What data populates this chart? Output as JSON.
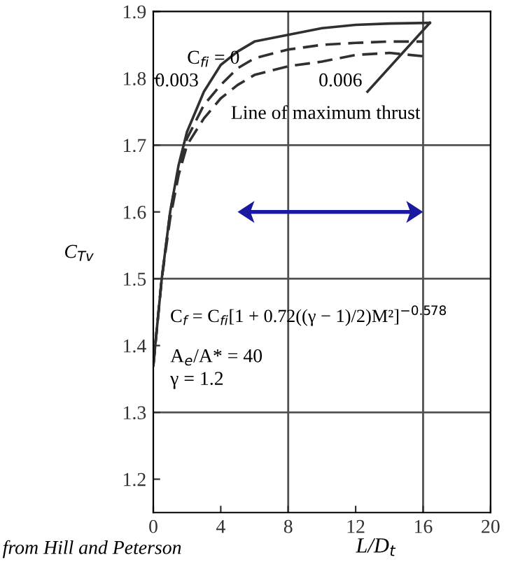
{
  "chart_data": {
    "type": "line",
    "xlabel": "L/D$_{t}$",
    "ylabel": "C$_{Tv}$",
    "xlim": [
      0,
      20
    ],
    "ylim": [
      1.15,
      1.9
    ],
    "xticks": [
      0,
      4,
      8,
      12,
      16,
      20
    ],
    "yticks": [
      1.2,
      1.3,
      1.4,
      1.5,
      1.6,
      1.7,
      1.8,
      1.9
    ],
    "grid": false,
    "legend": false,
    "series": [
      {
        "color": "#303030",
        "line_style": "solid",
        "x": [
          0,
          0.5,
          1,
          1.5,
          2,
          3,
          4,
          5,
          6,
          8,
          10,
          12,
          14,
          16.4
        ],
        "values": [
          1.37,
          1.5,
          1.6,
          1.67,
          1.72,
          1.78,
          1.82,
          1.84,
          1.855,
          1.865,
          1.875,
          1.88,
          1.882,
          1.883
        ]
      },
      {
        "color": "#303030",
        "line_style": "dashed",
        "x": [
          0,
          0.5,
          1,
          1.5,
          2,
          3,
          4,
          5,
          6,
          8,
          10,
          12,
          14,
          16
        ],
        "values": [
          1.37,
          1.5,
          1.6,
          1.665,
          1.71,
          1.76,
          1.79,
          1.815,
          1.83,
          1.843,
          1.85,
          1.853,
          1.855,
          1.855
        ]
      },
      {
        "color": "#303030",
        "line_style": "dashed",
        "x": [
          0,
          0.5,
          1,
          1.5,
          2,
          3,
          4,
          5,
          6,
          8,
          10,
          12,
          14,
          16
        ],
        "values": [
          1.37,
          1.5,
          1.59,
          1.655,
          1.7,
          1.74,
          1.77,
          1.79,
          1.805,
          1.818,
          1.825,
          1.835,
          1.838,
          1.833
        ]
      },
      {
        "color": "#303030",
        "line_style": "solid",
        "x": [
          12.7,
          16.4
        ],
        "values": [
          1.78,
          1.883
        ]
      }
    ],
    "ref_lines": [
      {
        "axis": "y",
        "value": 1.3,
        "color": "#505050"
      },
      {
        "axis": "y",
        "value": 1.5,
        "color": "#505050"
      },
      {
        "axis": "y",
        "value": 1.7,
        "color": "#505050"
      },
      {
        "axis": "x",
        "value": 8,
        "color": "#505050"
      },
      {
        "axis": "x",
        "value": 16,
        "color": "#505050"
      }
    ],
    "annotations": [
      "C$_{fi}$ = 0",
      "0.003",
      "0.006",
      "Line of maximum thrust",
      "C$_{f}$ = C$_{fi}$[1 + 0.72((γ − 1)/2)M²]$^{−0.578}$",
      "A$_{e}$/A* = 40",
      "γ = 1.2",
      "from Hill and Peterson"
    ]
  }
}
